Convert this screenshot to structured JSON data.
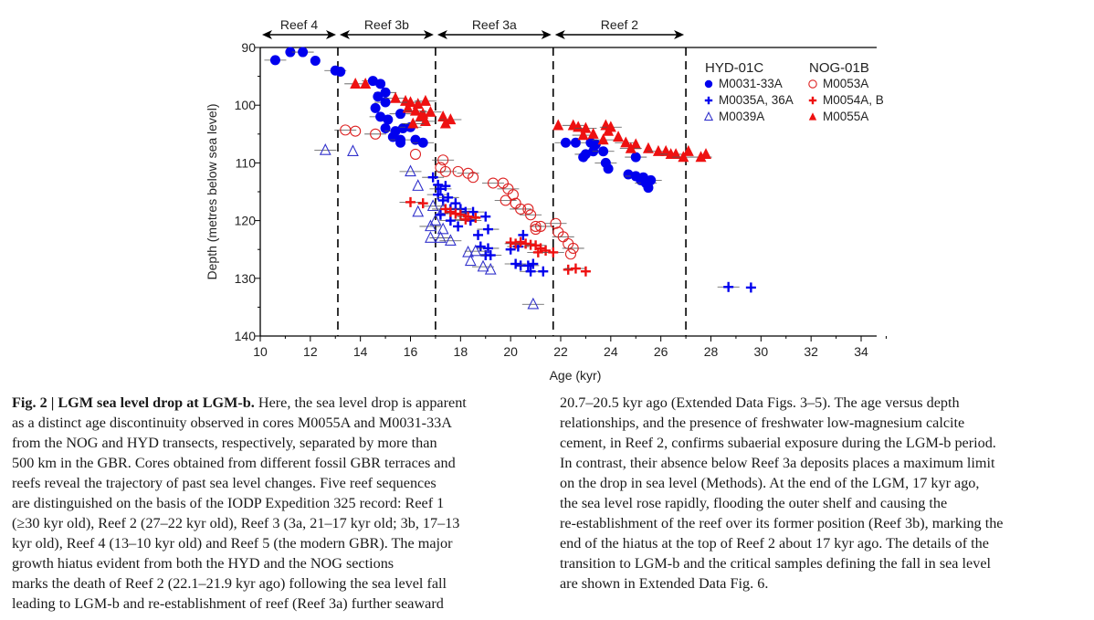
{
  "chart_data": {
    "type": "scatter",
    "title": "",
    "xlabel": "Age (kyr)",
    "ylabel": "Depth (metres below sea level)",
    "xlim": [
      10,
      35
    ],
    "ylim": [
      90,
      140
    ],
    "y_inverted": true,
    "x_ticks": [
      10,
      12,
      14,
      16,
      18,
      20,
      22,
      24,
      26,
      28,
      30,
      32,
      34
    ],
    "y_ticks": [
      90,
      100,
      110,
      120,
      130,
      140
    ],
    "grid": false,
    "legend_position": "top-right",
    "legend_groups": [
      {
        "title": "HYD-01C",
        "entries": [
          "M0031-33A",
          "M0035A, 36A",
          "M0039A"
        ]
      },
      {
        "title": "NOG-01B",
        "entries": [
          "M0053A",
          "M0054A, B",
          "M0055A"
        ]
      }
    ],
    "reef_boundaries": [
      13.1,
      17.0,
      21.7,
      27.0
    ],
    "reef_zones": [
      {
        "label": "Reef 4",
        "from": 10.0,
        "to": 13.1
      },
      {
        "label": "Reef 3b",
        "from": 13.1,
        "to": 17.0
      },
      {
        "label": "Reef 3a",
        "from": 17.0,
        "to": 21.7
      },
      {
        "label": "Reef 2",
        "from": 21.7,
        "to": 27.0
      }
    ],
    "series": [
      {
        "name": "M0031-33A",
        "core": "HYD-01C",
        "marker": "filled-circle",
        "color": "#0000ee",
        "points": [
          [
            10.6,
            92.2
          ],
          [
            11.2,
            90.8
          ],
          [
            11.7,
            90.8
          ],
          [
            12.2,
            92.3
          ],
          [
            13.0,
            94.0
          ],
          [
            13.2,
            94.2
          ],
          [
            14.5,
            95.8
          ],
          [
            14.8,
            96.3
          ],
          [
            15.0,
            97.8
          ],
          [
            14.7,
            98.5
          ],
          [
            15.0,
            99.5
          ],
          [
            14.6,
            100.5
          ],
          [
            14.8,
            102.0
          ],
          [
            15.1,
            102.5
          ],
          [
            15.6,
            101.5
          ],
          [
            15.0,
            104.0
          ],
          [
            15.4,
            104.5
          ],
          [
            15.7,
            104.0
          ],
          [
            16.0,
            103.8
          ],
          [
            15.3,
            105.5
          ],
          [
            15.6,
            106.0
          ],
          [
            16.2,
            106.0
          ],
          [
            16.5,
            106.5
          ],
          [
            15.6,
            106.5
          ],
          [
            22.2,
            106.5
          ],
          [
            22.6,
            106.5
          ],
          [
            23.2,
            106.5
          ],
          [
            23.4,
            106.8
          ],
          [
            23.0,
            108.5
          ],
          [
            23.3,
            108.0
          ],
          [
            23.7,
            108.0
          ],
          [
            22.9,
            109.0
          ],
          [
            23.8,
            110.0
          ],
          [
            23.9,
            111.0
          ],
          [
            25.0,
            109.0
          ],
          [
            24.7,
            112.0
          ],
          [
            25.0,
            112.3
          ],
          [
            25.2,
            113.0
          ],
          [
            25.4,
            113.5
          ],
          [
            25.5,
            114.3
          ],
          [
            25.6,
            113.0
          ],
          [
            25.3,
            112.5
          ]
        ]
      },
      {
        "name": "M0035A, 36A",
        "core": "HYD-01C",
        "marker": "plus",
        "color": "#0000ee",
        "points": [
          [
            16.9,
            112.5
          ],
          [
            17.1,
            113.8
          ],
          [
            17.2,
            114.5
          ],
          [
            17.4,
            114.0
          ],
          [
            17.1,
            115.5
          ],
          [
            17.3,
            116.5
          ],
          [
            17.5,
            116.0
          ],
          [
            17.8,
            117.0
          ],
          [
            18.0,
            118.0
          ],
          [
            18.2,
            118.5
          ],
          [
            17.6,
            118.0
          ],
          [
            17.2,
            119.0
          ],
          [
            17.6,
            120.0
          ],
          [
            17.9,
            121.0
          ],
          [
            18.5,
            118.5
          ],
          [
            19.0,
            119.3
          ],
          [
            18.4,
            120.0
          ],
          [
            18.7,
            122.5
          ],
          [
            19.1,
            121.5
          ],
          [
            18.8,
            124.5
          ],
          [
            19.1,
            124.8
          ],
          [
            19.0,
            126.0
          ],
          [
            19.2,
            126.0
          ],
          [
            20.0,
            125.0
          ],
          [
            20.3,
            124.5
          ],
          [
            20.5,
            122.5
          ],
          [
            20.2,
            127.5
          ],
          [
            20.4,
            127.8
          ],
          [
            20.7,
            127.8
          ],
          [
            20.9,
            127.5
          ],
          [
            20.8,
            128.8
          ],
          [
            21.3,
            128.8
          ],
          [
            28.7,
            131.5
          ],
          [
            29.6,
            131.6
          ]
        ]
      },
      {
        "name": "M0039A",
        "core": "HYD-01C",
        "marker": "open-triangle",
        "color": "#3333cc",
        "points": [
          [
            12.6,
            107.8
          ],
          [
            13.7,
            108.0
          ],
          [
            16.0,
            111.5
          ],
          [
            16.3,
            114.0
          ],
          [
            16.9,
            117.5
          ],
          [
            16.3,
            118.5
          ],
          [
            17.3,
            118.0
          ],
          [
            17.0,
            120.0
          ],
          [
            16.8,
            121.0
          ],
          [
            17.3,
            121.5
          ],
          [
            17.2,
            123.0
          ],
          [
            16.8,
            123.0
          ],
          [
            17.6,
            123.5
          ],
          [
            18.3,
            125.5
          ],
          [
            18.6,
            125.3
          ],
          [
            18.4,
            127.0
          ],
          [
            18.9,
            128.0
          ],
          [
            19.2,
            128.5
          ],
          [
            20.9,
            134.5
          ]
        ]
      },
      {
        "name": "M0053A",
        "core": "NOG-01B",
        "marker": "open-circle",
        "color": "#dd2222",
        "points": [
          [
            13.4,
            104.3
          ],
          [
            13.8,
            104.5
          ],
          [
            14.6,
            105.0
          ],
          [
            16.2,
            108.5
          ],
          [
            17.3,
            109.5
          ],
          [
            17.2,
            110.8
          ],
          [
            17.4,
            111.5
          ],
          [
            17.9,
            111.5
          ],
          [
            18.3,
            111.8
          ],
          [
            18.5,
            112.5
          ],
          [
            19.3,
            113.5
          ],
          [
            19.7,
            113.5
          ],
          [
            19.9,
            114.5
          ],
          [
            20.1,
            115.5
          ],
          [
            19.8,
            116.5
          ],
          [
            20.2,
            117.0
          ],
          [
            20.4,
            118.0
          ],
          [
            20.7,
            118.0
          ],
          [
            20.8,
            119.0
          ],
          [
            21.0,
            121.0
          ],
          [
            21.2,
            121.0
          ],
          [
            21.0,
            121.5
          ],
          [
            21.8,
            120.5
          ],
          [
            21.9,
            122.0
          ],
          [
            22.1,
            122.8
          ],
          [
            22.3,
            124.0
          ],
          [
            22.5,
            124.8
          ],
          [
            22.4,
            125.8
          ]
        ]
      },
      {
        "name": "M0054A, B",
        "core": "NOG-01B",
        "marker": "plus",
        "color": "#ee1111",
        "points": [
          [
            16.0,
            116.8
          ],
          [
            16.5,
            117.0
          ],
          [
            17.4,
            118.0
          ],
          [
            17.6,
            118.5
          ],
          [
            17.8,
            118.8
          ],
          [
            18.0,
            119.0
          ],
          [
            18.3,
            119.3
          ],
          [
            18.6,
            119.5
          ],
          [
            18.2,
            119.8
          ],
          [
            20.0,
            123.8
          ],
          [
            20.2,
            124.0
          ],
          [
            20.4,
            123.7
          ],
          [
            20.6,
            124.0
          ],
          [
            20.8,
            124.2
          ],
          [
            21.0,
            124.3
          ],
          [
            21.2,
            124.8
          ],
          [
            21.1,
            125.5
          ],
          [
            21.4,
            125.2
          ],
          [
            21.7,
            125.5
          ],
          [
            22.3,
            128.5
          ],
          [
            22.6,
            128.3
          ],
          [
            23.0,
            128.8
          ]
        ]
      },
      {
        "name": "M0055A",
        "core": "NOG-01B",
        "marker": "filled-triangle",
        "color": "#ee1111",
        "points": [
          [
            13.8,
            96.3
          ],
          [
            14.2,
            96.3
          ],
          [
            15.4,
            98.8
          ],
          [
            15.8,
            99.3
          ],
          [
            16.0,
            99.5
          ],
          [
            16.3,
            99.8
          ],
          [
            16.6,
            99.3
          ],
          [
            15.9,
            100.5
          ],
          [
            16.2,
            101.0
          ],
          [
            16.5,
            101.5
          ],
          [
            16.8,
            101.2
          ],
          [
            16.4,
            102.0
          ],
          [
            16.6,
            102.8
          ],
          [
            17.3,
            102.0
          ],
          [
            17.6,
            102.5
          ],
          [
            17.4,
            103.2
          ],
          [
            16.1,
            103.2
          ],
          [
            21.9,
            103.5
          ],
          [
            22.5,
            103.5
          ],
          [
            22.7,
            103.8
          ],
          [
            23.0,
            104.0
          ],
          [
            23.8,
            103.5
          ],
          [
            24.0,
            103.8
          ],
          [
            23.9,
            104.5
          ],
          [
            22.9,
            105.2
          ],
          [
            23.3,
            105.0
          ],
          [
            23.7,
            106.0
          ],
          [
            24.3,
            105.5
          ],
          [
            24.6,
            106.5
          ],
          [
            25.0,
            106.8
          ],
          [
            24.8,
            107.5
          ],
          [
            25.5,
            107.5
          ],
          [
            25.9,
            108.0
          ],
          [
            26.2,
            108.0
          ],
          [
            26.4,
            108.5
          ],
          [
            26.6,
            108.5
          ],
          [
            26.9,
            109.0
          ],
          [
            27.1,
            108.0
          ],
          [
            27.6,
            109.0
          ],
          [
            27.8,
            108.5
          ]
        ]
      }
    ]
  },
  "caption": {
    "left_lines": [
      {
        "bold": "Fig. 2 | LGM sea level drop at LGM-b.",
        "text": " Here, the sea level drop is apparent"
      },
      {
        "bold": "",
        "text": "as a distinct age discontinuity observed in cores M0055A and M0031-33A"
      },
      {
        "bold": "",
        "text": "from the NOG and HYD transects, respectively, separated by more than"
      },
      {
        "bold": "",
        "text": "500 km in the GBR. Cores obtained from different fossil GBR terraces and"
      },
      {
        "bold": "",
        "text": "reefs reveal the trajectory of past sea level changes. Five reef sequences"
      },
      {
        "bold": "",
        "text": "are distinguished on the basis of the IODP Expedition 325 record: Reef 1"
      },
      {
        "bold": "",
        "text": "(≥30 kyr old), Reef 2 (27–22 kyr old), Reef 3 (3a, 21–17 kyr old; 3b, 17–13"
      },
      {
        "bold": "",
        "text": "kyr old), Reef 4 (13–10 kyr old) and Reef 5 (the modern GBR). The major"
      },
      {
        "bold": "",
        "text": "growth hiatus evident from both the HYD and the NOG sections"
      },
      {
        "bold": "",
        "text": "marks the death of Reef 2 (22.1–21.9 kyr ago) following the sea level fall"
      },
      {
        "bold": "",
        "text": "leading to LGM-b and re-establishment of reef (Reef 3a) further seaward"
      }
    ],
    "right_lines": [
      "20.7–20.5 kyr ago (Extended Data Figs. 3–5). The age versus depth",
      "relationships, and the presence of freshwater low-magnesium calcite",
      "cement, in Reef 2, confirms subaerial exposure during the LGM-b period.",
      "In contrast, their absence below Reef 3a deposits places a maximum limit",
      "on the drop in sea level (Methods). At the end of the LGM, 17 kyr ago,",
      "the sea level rose rapidly, flooding the outer shelf and causing the",
      "re-establishment of the reef over its former position (Reef 3b), marking the",
      "end of the hiatus at the top of Reef 2 about 17 kyr ago. The details of the",
      "transition to LGM-b and the critical samples defining the fall in sea level",
      "are shown in Extended Data Fig. 6."
    ]
  }
}
